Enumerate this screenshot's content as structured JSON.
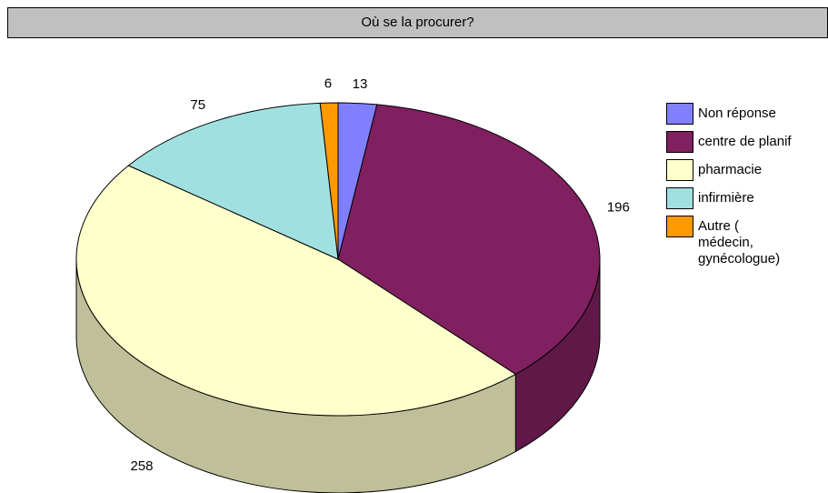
{
  "chart_data": {
    "type": "pie",
    "title": "Où se la procurer?",
    "categories": [
      "Non réponse",
      "centre de planif",
      "pharmacie",
      "infirmière",
      "Autre ( médecin, gynécologue)"
    ],
    "values": [
      13,
      196,
      258,
      75,
      6
    ],
    "colors": [
      "#8080ff",
      "#802060",
      "#ffffcc",
      "#a0e0e0",
      "#ff9900"
    ],
    "legend": "right",
    "three_d": true
  }
}
